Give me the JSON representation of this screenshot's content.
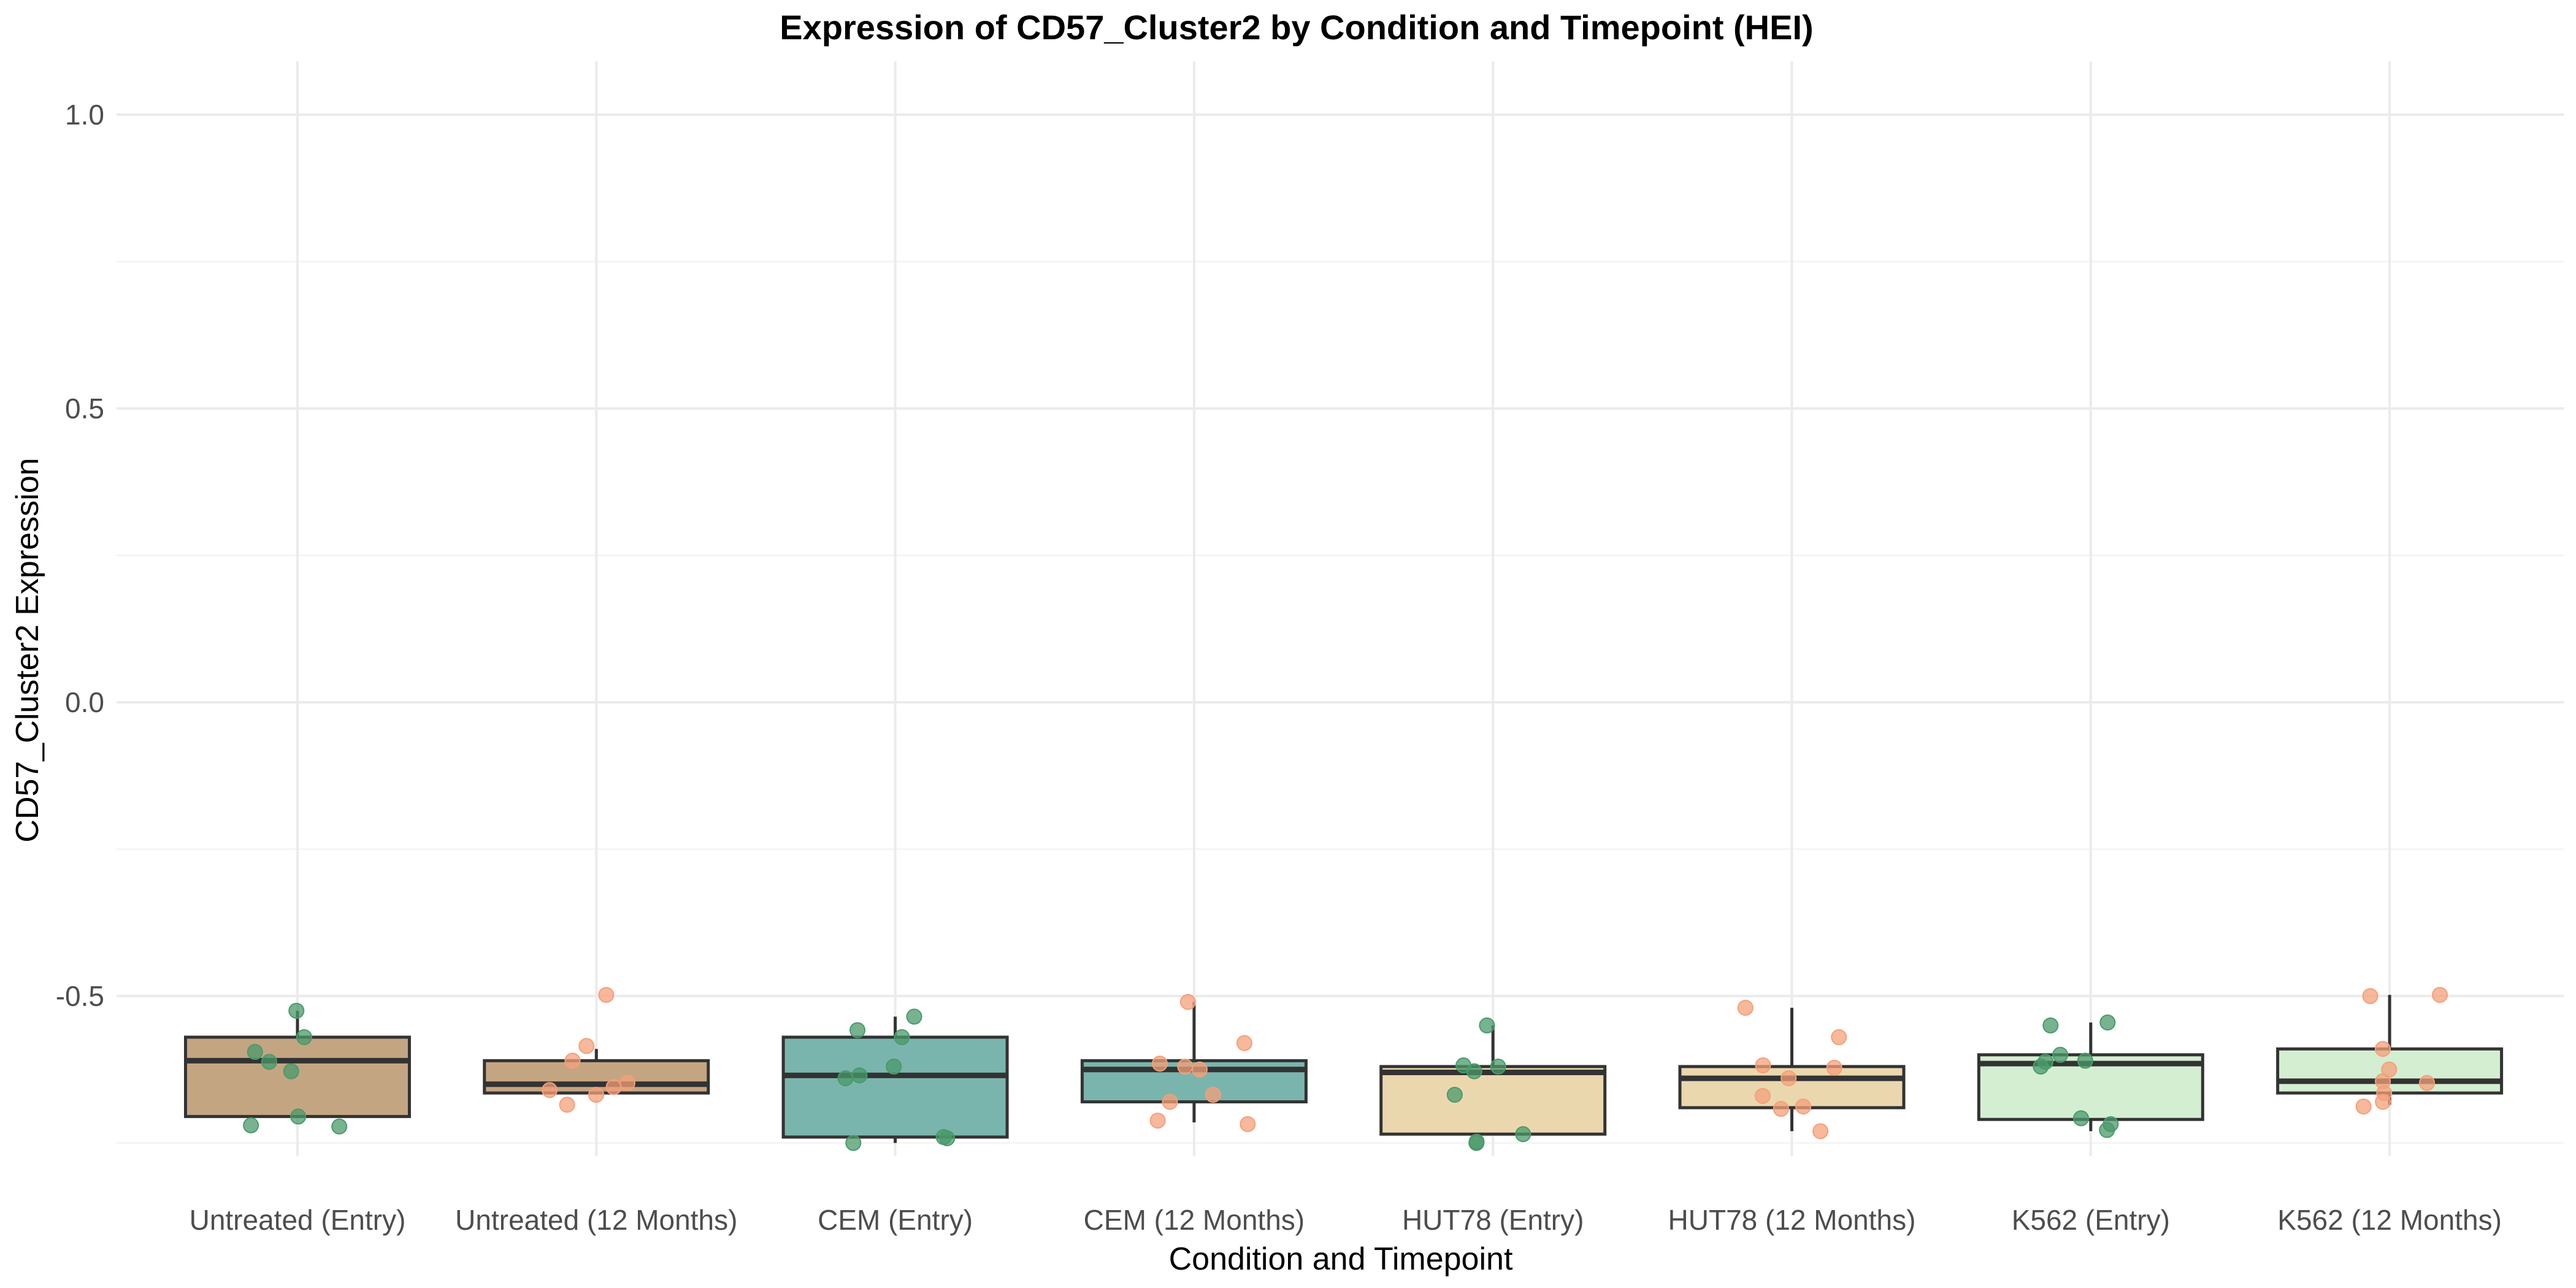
{
  "chart_data": {
    "type": "box",
    "title": "Expression of CD57_Cluster2 by Condition and Timepoint (HEI)",
    "xlabel": "Condition and Timepoint",
    "ylabel": "CD57_Cluster2 Expression",
    "ylim": [
      -0.78,
      1.1
    ],
    "yticks": [
      1.0,
      0.5,
      0.0,
      -0.5
    ],
    "ytick_labels": [
      "1.0",
      "0.5",
      "0.0",
      "-0.5"
    ],
    "grid": true,
    "colors": {
      "entry_points": "#4a9a6a",
      "month12_points": "#f4a07a"
    },
    "categories": [
      {
        "label": "Untreated (Entry)",
        "fill": "#c4a582",
        "q1": -0.705,
        "median": -0.61,
        "q3": -0.57,
        "whisker_low": -0.705,
        "whisker_high": -0.525,
        "point_color": "#4a9a6a",
        "points": [
          -0.525,
          -0.57,
          -0.595,
          -0.612,
          -0.628,
          -0.705,
          -0.72,
          -0.722
        ]
      },
      {
        "label": "Untreated (12 Months)",
        "fill": "#c4a582",
        "q1": -0.665,
        "median": -0.65,
        "q3": -0.61,
        "whisker_low": -0.665,
        "whisker_high": -0.59,
        "point_color": "#f4a07a",
        "points": [
          -0.498,
          -0.585,
          -0.61,
          -0.648,
          -0.655,
          -0.66,
          -0.668,
          -0.685
        ]
      },
      {
        "label": "CEM (Entry)",
        "fill": "#7ab5ad",
        "q1": -0.74,
        "median": -0.635,
        "q3": -0.57,
        "whisker_low": -0.75,
        "whisker_high": -0.535,
        "point_color": "#4a9a6a",
        "points": [
          -0.535,
          -0.558,
          -0.57,
          -0.62,
          -0.635,
          -0.64,
          -0.74,
          -0.742,
          -0.75
        ]
      },
      {
        "label": "CEM (12 Months)",
        "fill": "#7ab5ad",
        "q1": -0.68,
        "median": -0.625,
        "q3": -0.61,
        "whisker_low": -0.715,
        "whisker_high": -0.51,
        "point_color": "#f4a07a",
        "points": [
          -0.51,
          -0.58,
          -0.615,
          -0.62,
          -0.625,
          -0.668,
          -0.68,
          -0.712,
          -0.718
        ]
      },
      {
        "label": "HUT78 (Entry)",
        "fill": "#ebd7ae",
        "q1": -0.735,
        "median": -0.63,
        "q3": -0.62,
        "whisker_low": -0.735,
        "whisker_high": -0.55,
        "point_color": "#4a9a6a",
        "points": [
          -0.55,
          -0.618,
          -0.62,
          -0.628,
          -0.668,
          -0.735,
          -0.748,
          -0.75
        ]
      },
      {
        "label": "HUT78 (12 Months)",
        "fill": "#ebd7ae",
        "q1": -0.69,
        "median": -0.64,
        "q3": -0.62,
        "whisker_low": -0.73,
        "whisker_high": -0.52,
        "point_color": "#f4a07a",
        "points": [
          -0.52,
          -0.57,
          -0.618,
          -0.622,
          -0.64,
          -0.67,
          -0.688,
          -0.692,
          -0.73
        ]
      },
      {
        "label": "K562 (Entry)",
        "fill": "#d4eed2",
        "q1": -0.71,
        "median": -0.615,
        "q3": -0.6,
        "whisker_low": -0.73,
        "whisker_high": -0.545,
        "point_color": "#4a9a6a",
        "points": [
          -0.545,
          -0.55,
          -0.6,
          -0.61,
          -0.612,
          -0.62,
          -0.708,
          -0.718,
          -0.728
        ]
      },
      {
        "label": "K562 (12 Months)",
        "fill": "#d4eed2",
        "q1": -0.665,
        "median": -0.645,
        "q3": -0.59,
        "whisker_low": -0.685,
        "whisker_high": -0.498,
        "point_color": "#f4a07a",
        "points": [
          -0.498,
          -0.5,
          -0.59,
          -0.625,
          -0.645,
          -0.648,
          -0.665,
          -0.68,
          -0.688
        ]
      }
    ]
  }
}
